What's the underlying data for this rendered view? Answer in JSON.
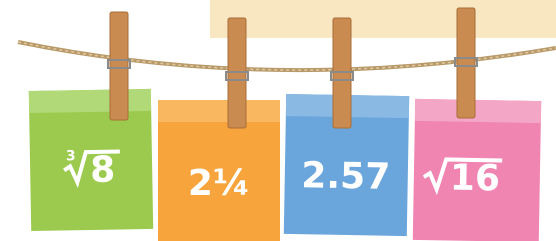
{
  "cards": [
    {
      "index": "3",
      "radicand": "8"
    },
    {
      "text": "2¼"
    },
    {
      "text": "2.57"
    },
    {
      "radicand": "16"
    }
  ]
}
